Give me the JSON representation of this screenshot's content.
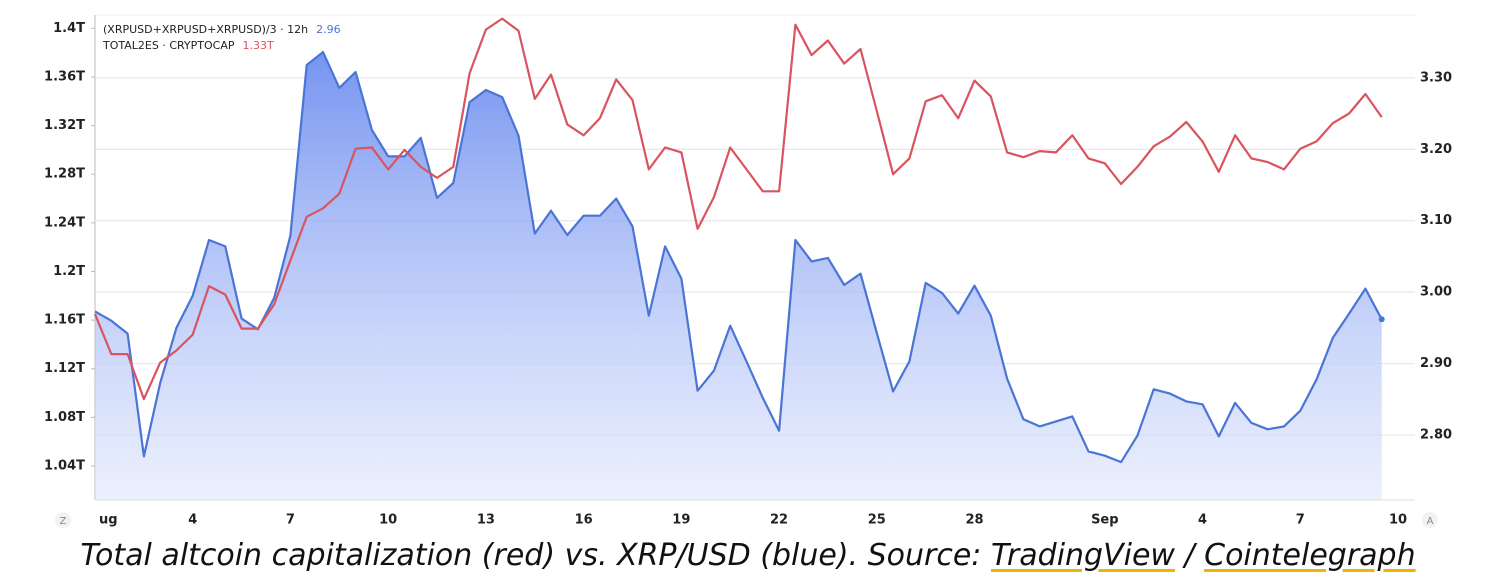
{
  "chart_data": {
    "type": "line",
    "categories": [
      "ug",
      null,
      null,
      null,
      null,
      null,
      "4",
      null,
      null,
      null,
      null,
      null,
      "7",
      null,
      null,
      null,
      null,
      null,
      "10",
      null,
      null,
      null,
      null,
      null,
      "13",
      null,
      null,
      null,
      null,
      null,
      "16",
      null,
      null,
      null,
      null,
      null,
      "19",
      null,
      null,
      null,
      null,
      null,
      "22",
      null,
      null,
      null,
      null,
      null,
      "25",
      null,
      null,
      null,
      null,
      null,
      "28",
      null,
      null,
      null,
      null,
      null,
      null,
      null,
      "Sep",
      null,
      null,
      null,
      null,
      null,
      "4",
      null,
      null,
      null,
      null,
      null,
      "7",
      null,
      null,
      null,
      null,
      null,
      "10"
    ],
    "series": [
      {
        "name": "(XRPUSD+XRPUSD+XRPUSD)/3 · 12h",
        "legend_value": "2.96",
        "color": "#4a74d6",
        "axis": "y2",
        "area": true,
        "values": [
          2.973,
          2.96,
          2.942,
          2.77,
          2.873,
          2.95,
          2.995,
          3.073,
          3.064,
          2.963,
          2.948,
          2.992,
          3.079,
          3.318,
          3.336,
          3.286,
          3.308,
          3.227,
          3.19,
          3.19,
          3.216,
          3.132,
          3.153,
          3.266,
          3.283,
          3.273,
          3.219,
          3.082,
          3.114,
          3.08,
          3.107,
          3.107,
          3.131,
          3.092,
          2.967,
          3.064,
          3.019,
          2.862,
          2.89,
          2.953,
          2.903,
          2.852,
          2.806,
          3.073,
          3.043,
          3.048,
          3.01,
          3.026,
          2.943,
          2.861,
          2.903,
          3.013,
          2.999,
          2.97,
          3.009,
          2.967,
          2.879,
          2.822,
          2.812,
          2.819,
          2.826,
          2.777,
          2.771,
          2.762,
          2.799,
          2.864,
          2.858,
          2.847,
          2.843,
          2.798,
          2.845,
          2.817,
          2.808,
          2.812,
          2.834,
          2.878,
          2.936,
          2.97,
          3.005,
          2.962,
          null
        ]
      },
      {
        "name": "TOTAL2ES · CRYPTOCAP",
        "legend_value": "1.33T",
        "color": "#d9545e",
        "axis": "y",
        "area": false,
        "values": [
          1.165,
          1.132,
          1.132,
          1.095,
          1.125,
          1.135,
          1.148,
          1.188,
          1.181,
          1.153,
          1.153,
          1.173,
          1.209,
          1.245,
          1.252,
          1.264,
          1.301,
          1.302,
          1.284,
          1.3,
          1.286,
          1.277,
          1.286,
          1.363,
          1.399,
          1.408,
          1.398,
          1.342,
          1.362,
          1.321,
          1.312,
          1.326,
          1.358,
          1.341,
          1.284,
          1.302,
          1.298,
          1.235,
          1.261,
          1.302,
          1.284,
          1.266,
          1.266,
          1.403,
          1.378,
          1.39,
          1.371,
          1.383,
          1.332,
          1.28,
          1.293,
          1.34,
          1.345,
          1.326,
          1.357,
          1.344,
          1.298,
          1.294,
          1.299,
          1.298,
          1.312,
          1.293,
          1.289,
          1.272,
          1.286,
          1.303,
          1.311,
          1.323,
          1.307,
          1.282,
          1.312,
          1.293,
          1.29,
          1.284,
          1.301,
          1.307,
          1.322,
          1.33,
          1.346,
          1.327,
          null
        ]
      }
    ],
    "ylim": [
      1.012,
      1.411
    ],
    "yticks": [
      {
        "value": 1.04,
        "label": "1.04T"
      },
      {
        "value": 1.08,
        "label": "1.08T"
      },
      {
        "value": 1.12,
        "label": "1.12T"
      },
      {
        "value": 1.16,
        "label": "1.16T"
      },
      {
        "value": 1.2,
        "label": "1.2T"
      },
      {
        "value": 1.24,
        "label": "1.24T"
      },
      {
        "value": 1.28,
        "label": "1.28T"
      },
      {
        "value": 1.32,
        "label": "1.32T"
      },
      {
        "value": 1.36,
        "label": "1.36T"
      },
      {
        "value": 1.4,
        "label": "1.4T"
      }
    ],
    "y2lim": [
      2.709,
      3.388
    ],
    "y2ticks": [
      {
        "value": 2.8,
        "label": "2.80"
      },
      {
        "value": 2.9,
        "label": "2.90"
      },
      {
        "value": 3.0,
        "label": "3.00"
      },
      {
        "value": 3.1,
        "label": "3.10"
      },
      {
        "value": 3.2,
        "label": "3.20"
      },
      {
        "value": 3.3,
        "label": "3.30"
      }
    ],
    "grid": true,
    "corner_labels": [
      "Z",
      "A"
    ],
    "caption": {
      "text": "Total altcoin capitalization (red) vs. XRP/USD (blue). Source: ",
      "links": [
        "TradingView",
        "Cointelegraph"
      ],
      "separator": " / "
    }
  }
}
